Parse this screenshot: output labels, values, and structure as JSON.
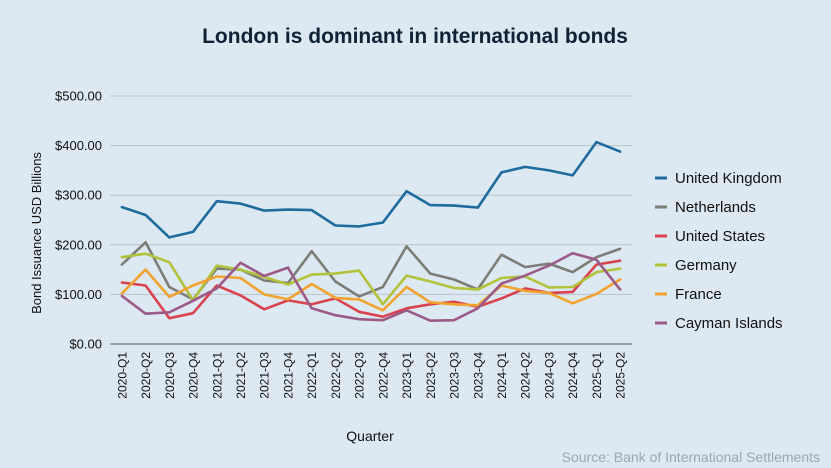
{
  "chart_data": {
    "type": "line",
    "title": "London is dominant in international bonds",
    "xlabel": "Quarter",
    "ylabel": "Bond Issuance USD Billions",
    "source": "Source: Bank of International Settlements",
    "ylim": [
      0,
      500
    ],
    "yticks": [
      {
        "value": 0,
        "label": "$0.00"
      },
      {
        "value": 100,
        "label": "$100.00"
      },
      {
        "value": 200,
        "label": "$200.00"
      },
      {
        "value": 300,
        "label": "$300.00"
      },
      {
        "value": 400,
        "label": "$400.00"
      },
      {
        "value": 500,
        "label": "$500.00"
      }
    ],
    "grid": true,
    "legend_position": "right",
    "categories": [
      "2020-Q1",
      "2020-Q2",
      "2020-Q3",
      "2020-Q4",
      "2021-Q1",
      "2021-Q2",
      "2021-Q3",
      "2021-Q4",
      "2022-Q1",
      "2022-Q2",
      "2022-Q3",
      "2022-Q4",
      "2023-Q1",
      "2023-Q2",
      "2023-Q3",
      "2023-Q4",
      "2024-Q1",
      "2024-Q2",
      "2024-Q3",
      "2024-Q4",
      "2025-Q1",
      "2025-Q2"
    ],
    "series": [
      {
        "name": "United Kingdom",
        "color": "#1f6b9e",
        "values": [
          276,
          260,
          215,
          226,
          288,
          283,
          269,
          271,
          270,
          239,
          237,
          245,
          308,
          280,
          279,
          275,
          346,
          357,
          350,
          340,
          407,
          388
        ]
      },
      {
        "name": "Netherlands",
        "color": "#7d7d78",
        "values": [
          160,
          205,
          115,
          90,
          152,
          150,
          128,
          123,
          187,
          126,
          96,
          115,
          197,
          142,
          130,
          110,
          180,
          155,
          162,
          145,
          175,
          192
        ]
      },
      {
        "name": "United States",
        "color": "#d9434f",
        "values": [
          124,
          118,
          52,
          62,
          118,
          98,
          70,
          88,
          80,
          92,
          65,
          55,
          72,
          80,
          85,
          75,
          92,
          112,
          103,
          105,
          160,
          168
        ]
      },
      {
        "name": "Germany",
        "color": "#b2c23a",
        "values": [
          175,
          182,
          165,
          88,
          158,
          150,
          135,
          120,
          140,
          142,
          148,
          80,
          138,
          126,
          113,
          110,
          133,
          136,
          114,
          115,
          145,
          152
        ]
      },
      {
        "name": "France",
        "color": "#f2a22f",
        "values": [
          102,
          150,
          95,
          118,
          136,
          133,
          100,
          90,
          121,
          93,
          90,
          68,
          115,
          84,
          80,
          78,
          118,
          107,
          103,
          82,
          101,
          130
        ]
      },
      {
        "name": "Cayman Islands",
        "color": "#9c5a88",
        "values": [
          97,
          61,
          64,
          87,
          112,
          164,
          137,
          154,
          72,
          58,
          50,
          48,
          68,
          47,
          48,
          72,
          122,
          138,
          158,
          183,
          170,
          110
        ]
      }
    ]
  }
}
